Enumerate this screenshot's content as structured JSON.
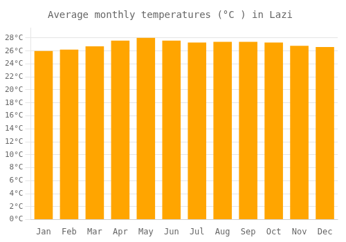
{
  "chart_data": {
    "type": "bar",
    "title": "Average monthly temperatures (°C ) in Lazi",
    "categories": [
      "Jan",
      "Feb",
      "Mar",
      "Apr",
      "May",
      "Jun",
      "Jul",
      "Aug",
      "Sep",
      "Oct",
      "Nov",
      "Dec"
    ],
    "values": [
      26.0,
      26.2,
      26.7,
      27.6,
      28.0,
      27.6,
      27.3,
      27.4,
      27.4,
      27.3,
      26.8,
      26.6
    ],
    "color": "#FFA500",
    "ylim": [
      0,
      29.5
    ],
    "yticks": [
      {
        "value": 0,
        "label": "0°C"
      },
      {
        "value": 2,
        "label": "2°C"
      },
      {
        "value": 4,
        "label": "4°C"
      },
      {
        "value": 6,
        "label": "6°C"
      },
      {
        "value": 8,
        "label": "8°C"
      },
      {
        "value": 10,
        "label": "10°C"
      },
      {
        "value": 12,
        "label": "12°C"
      },
      {
        "value": 14,
        "label": "14°C"
      },
      {
        "value": 16,
        "label": "16°C"
      },
      {
        "value": 18,
        "label": "18°C"
      },
      {
        "value": 20,
        "label": "20°C"
      },
      {
        "value": 22,
        "label": "22°C"
      },
      {
        "value": 24,
        "label": "24°C"
      },
      {
        "value": 26,
        "label": "26°C"
      },
      {
        "value": 28,
        "label": "28°C"
      }
    ],
    "grid": true
  }
}
